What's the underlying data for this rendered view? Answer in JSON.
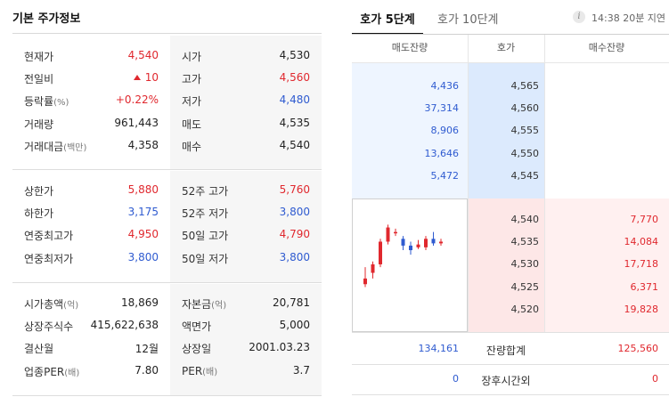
{
  "left": {
    "title": "기본 주가정보",
    "groups": [
      [
        {
          "l1": "현재가",
          "u1": "",
          "v1": "4,540",
          "c1": "up",
          "tri": false,
          "l2": "시가",
          "u2": "",
          "v2": "4,530",
          "c2": ""
        },
        {
          "l1": "전일비",
          "u1": "",
          "v1": "10",
          "c1": "up",
          "tri": true,
          "l2": "고가",
          "u2": "",
          "v2": "4,560",
          "c2": "up"
        },
        {
          "l1": "등락률",
          "u1": "(%)",
          "v1": "+0.22%",
          "c1": "up",
          "tri": false,
          "l2": "저가",
          "u2": "",
          "v2": "4,480",
          "c2": "down"
        },
        {
          "l1": "거래량",
          "u1": "",
          "v1": "961,443",
          "c1": "",
          "tri": false,
          "l2": "매도",
          "u2": "",
          "v2": "4,535",
          "c2": ""
        },
        {
          "l1": "거래대금",
          "u1": "(백만)",
          "v1": "4,358",
          "c1": "",
          "tri": false,
          "l2": "매수",
          "u2": "",
          "v2": "4,540",
          "c2": ""
        }
      ],
      [
        {
          "l1": "상한가",
          "u1": "",
          "v1": "5,880",
          "c1": "up",
          "tri": false,
          "l2": "52주 고가",
          "u2": "",
          "v2": "5,760",
          "c2": "up"
        },
        {
          "l1": "하한가",
          "u1": "",
          "v1": "3,175",
          "c1": "down",
          "tri": false,
          "l2": "52주 저가",
          "u2": "",
          "v2": "3,800",
          "c2": "down"
        },
        {
          "l1": "연중최고가",
          "u1": "",
          "v1": "4,950",
          "c1": "up",
          "tri": false,
          "l2": "50일 고가",
          "u2": "",
          "v2": "4,790",
          "c2": "up"
        },
        {
          "l1": "연중최저가",
          "u1": "",
          "v1": "3,800",
          "c1": "down",
          "tri": false,
          "l2": "50일 저가",
          "u2": "",
          "v2": "3,800",
          "c2": "down"
        }
      ],
      [
        {
          "l1": "시가총액",
          "u1": "(억)",
          "v1": "18,869",
          "c1": "",
          "tri": false,
          "l2": "자본금",
          "u2": "(억)",
          "v2": "20,781",
          "c2": ""
        },
        {
          "l1": "상장주식수",
          "u1": "",
          "v1": "415,622,638",
          "c1": "",
          "tri": false,
          "l2": "액면가",
          "u2": "",
          "v2": "5,000",
          "c2": ""
        },
        {
          "l1": "결산월",
          "u1": "",
          "v1": "12월",
          "c1": "",
          "tri": false,
          "l2": "상장일",
          "u2": "",
          "v2": "2001.03.23",
          "c2": ""
        },
        {
          "l1": "업종PER",
          "u1": "(배)",
          "v1": "7.80",
          "c1": "",
          "tri": false,
          "l2": "PER",
          "u2": "(배)",
          "v2": "3.7",
          "c2": ""
        }
      ]
    ]
  },
  "right": {
    "tabs": {
      "active": "호가 5단계",
      "inactive": "호가 10단계"
    },
    "info_icon": "i",
    "delay_text": "14:38 20분 지연",
    "headers": {
      "ask": "매도잔량",
      "price": "호가",
      "bid": "매수잔량"
    },
    "asks": [
      {
        "qty": "4,436",
        "price": "4,565"
      },
      {
        "qty": "37,314",
        "price": "4,560"
      },
      {
        "qty": "8,906",
        "price": "4,555"
      },
      {
        "qty": "13,646",
        "price": "4,550"
      },
      {
        "qty": "5,472",
        "price": "4,545"
      }
    ],
    "bids": [
      {
        "price": "4,540",
        "qty": "7,770"
      },
      {
        "price": "4,535",
        "qty": "14,084"
      },
      {
        "price": "4,530",
        "qty": "17,718"
      },
      {
        "price": "4,525",
        "qty": "6,371"
      },
      {
        "price": "4,520",
        "qty": "19,828"
      }
    ],
    "summary": {
      "ask_total": "134,161",
      "label": "잔량합계",
      "bid_total": "125,560"
    },
    "after_hours": {
      "ask": "0",
      "label": "장후시간외",
      "bid": "0"
    }
  },
  "colors": {
    "up": "#e0282e",
    "down": "#2f5bd0"
  },
  "mini_chart": {
    "candles": [
      {
        "o": 4470,
        "h": 4490,
        "l": 4455,
        "c": 4460,
        "dir": "up"
      },
      {
        "o": 4480,
        "h": 4500,
        "l": 4470,
        "c": 4495,
        "dir": "up"
      },
      {
        "o": 4495,
        "h": 4540,
        "l": 4490,
        "c": 4535,
        "dir": "up"
      },
      {
        "o": 4535,
        "h": 4565,
        "l": 4530,
        "c": 4560,
        "dir": "up"
      },
      {
        "o": 4550,
        "h": 4558,
        "l": 4545,
        "c": 4552,
        "dir": "up"
      },
      {
        "o": 4540,
        "h": 4545,
        "l": 4520,
        "c": 4528,
        "dir": "down"
      },
      {
        "o": 4528,
        "h": 4535,
        "l": 4512,
        "c": 4520,
        "dir": "down"
      },
      {
        "o": 4530,
        "h": 4538,
        "l": 4522,
        "c": 4525,
        "dir": "up"
      },
      {
        "o": 4525,
        "h": 4545,
        "l": 4520,
        "c": 4540,
        "dir": "up"
      },
      {
        "o": 4540,
        "h": 4552,
        "l": 4528,
        "c": 4532,
        "dir": "down"
      },
      {
        "o": 4532,
        "h": 4540,
        "l": 4528,
        "c": 4535,
        "dir": "up"
      }
    ],
    "range": [
      4440,
      4575
    ]
  }
}
